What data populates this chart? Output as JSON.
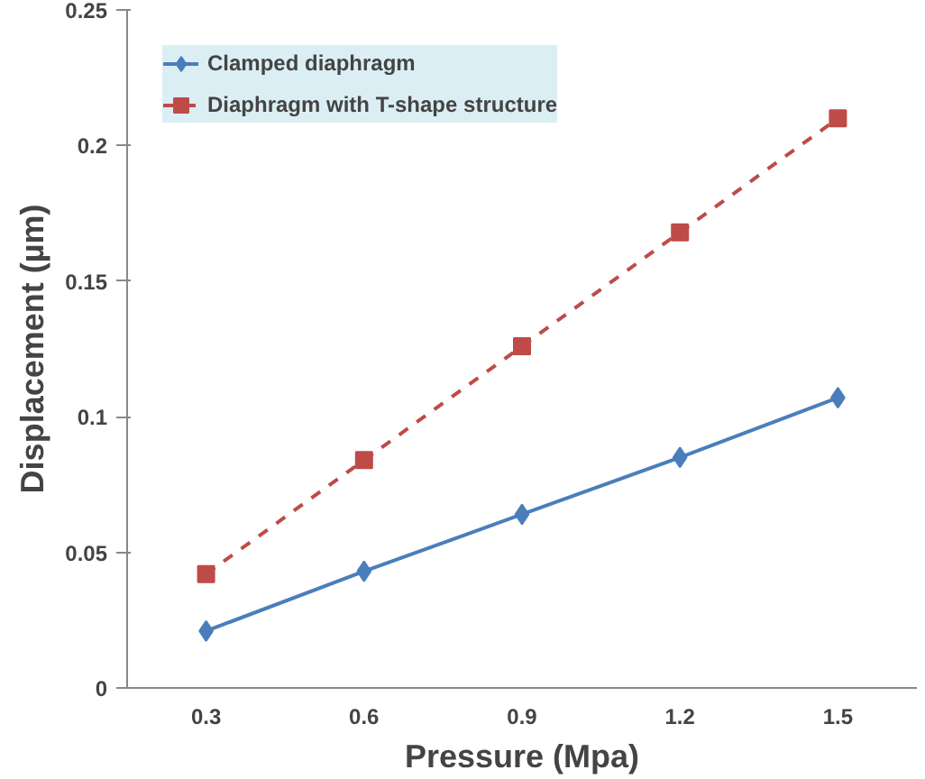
{
  "chart_data": {
    "type": "line",
    "xlabel": "Pressure (Mpa)",
    "ylabel": "Displacement (µm)",
    "categories": [
      "0.3",
      "0.6",
      "0.9",
      "1.2",
      "1.5"
    ],
    "series": [
      {
        "name": "Clamped diaphragm",
        "color": "#4a7ebb",
        "values": [
          0.021,
          0.043,
          0.064,
          0.085,
          0.107
        ],
        "marker": "diamond",
        "line_style": "solid"
      },
      {
        "name": "Diaphragm with T-shape structure",
        "color": "#be4b48",
        "values": [
          0.042,
          0.084,
          0.126,
          0.168,
          0.21
        ],
        "marker": "square",
        "line_style": "dashed"
      }
    ],
    "ylim": [
      0,
      0.25
    ],
    "yticks": [
      0,
      0.05,
      0.1,
      0.15,
      0.2,
      0.25
    ],
    "grid": false,
    "legend": "top left"
  }
}
